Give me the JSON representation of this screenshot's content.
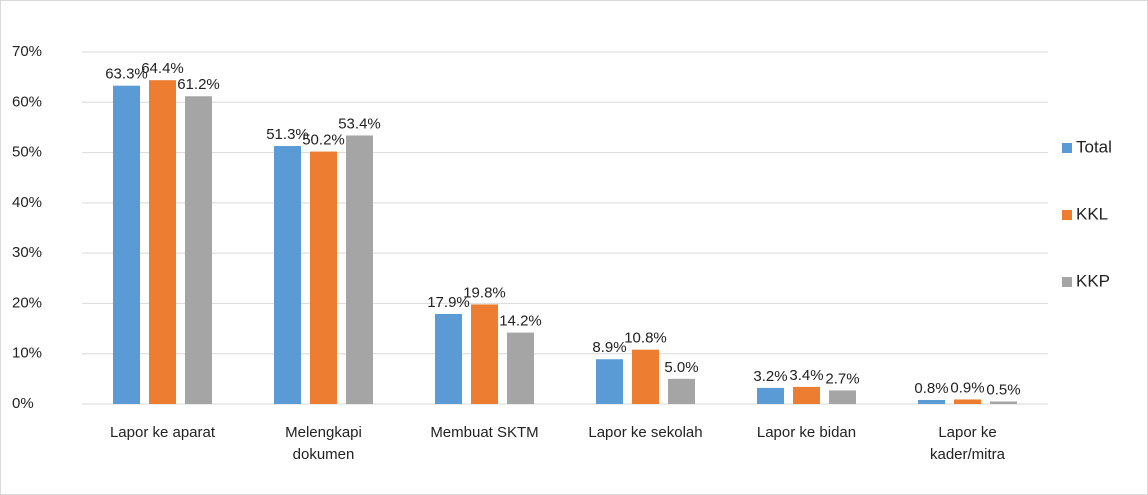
{
  "chart_data": {
    "type": "bar",
    "categories": [
      "Lapor ke aparat",
      "Melengkapi dokumen",
      "Membuat SKTM",
      "Lapor ke sekolah",
      "Lapor ke bidan",
      "Lapor ke kader/mitra"
    ],
    "series": [
      {
        "name": "Total",
        "color": "#5b9bd5",
        "values": [
          63.3,
          51.3,
          17.9,
          8.9,
          3.2,
          0.8
        ],
        "value_labels": [
          "63.3%",
          "51.3%",
          "17.9%",
          "8.9%",
          "3.2%",
          "0.8%"
        ]
      },
      {
        "name": "KKL",
        "color": "#ed7d31",
        "values": [
          64.4,
          50.2,
          19.8,
          10.8,
          3.4,
          0.9
        ],
        "value_labels": [
          "64.4%",
          "50.2%",
          "19.8%",
          "10.8%",
          "3.4%",
          "0.9%"
        ]
      },
      {
        "name": "KKP",
        "color": "#a5a5a5",
        "values": [
          61.2,
          53.4,
          14.2,
          5.0,
          2.7,
          0.5
        ],
        "value_labels": [
          "61.2%",
          "53.4%",
          "14.2%",
          "5.0%",
          "2.7%",
          "0.5%"
        ]
      }
    ],
    "ylim": [
      0,
      70
    ],
    "yticks": [
      {
        "value": 0,
        "label": "0%"
      },
      {
        "value": 10,
        "label": "10%"
      },
      {
        "value": 20,
        "label": "20%"
      },
      {
        "value": 30,
        "label": "30%"
      },
      {
        "value": 40,
        "label": "40%"
      },
      {
        "value": 50,
        "label": "50%"
      },
      {
        "value": 60,
        "label": "60%"
      },
      {
        "value": 70,
        "label": "70%"
      }
    ],
    "grid": true,
    "legend": "right"
  }
}
